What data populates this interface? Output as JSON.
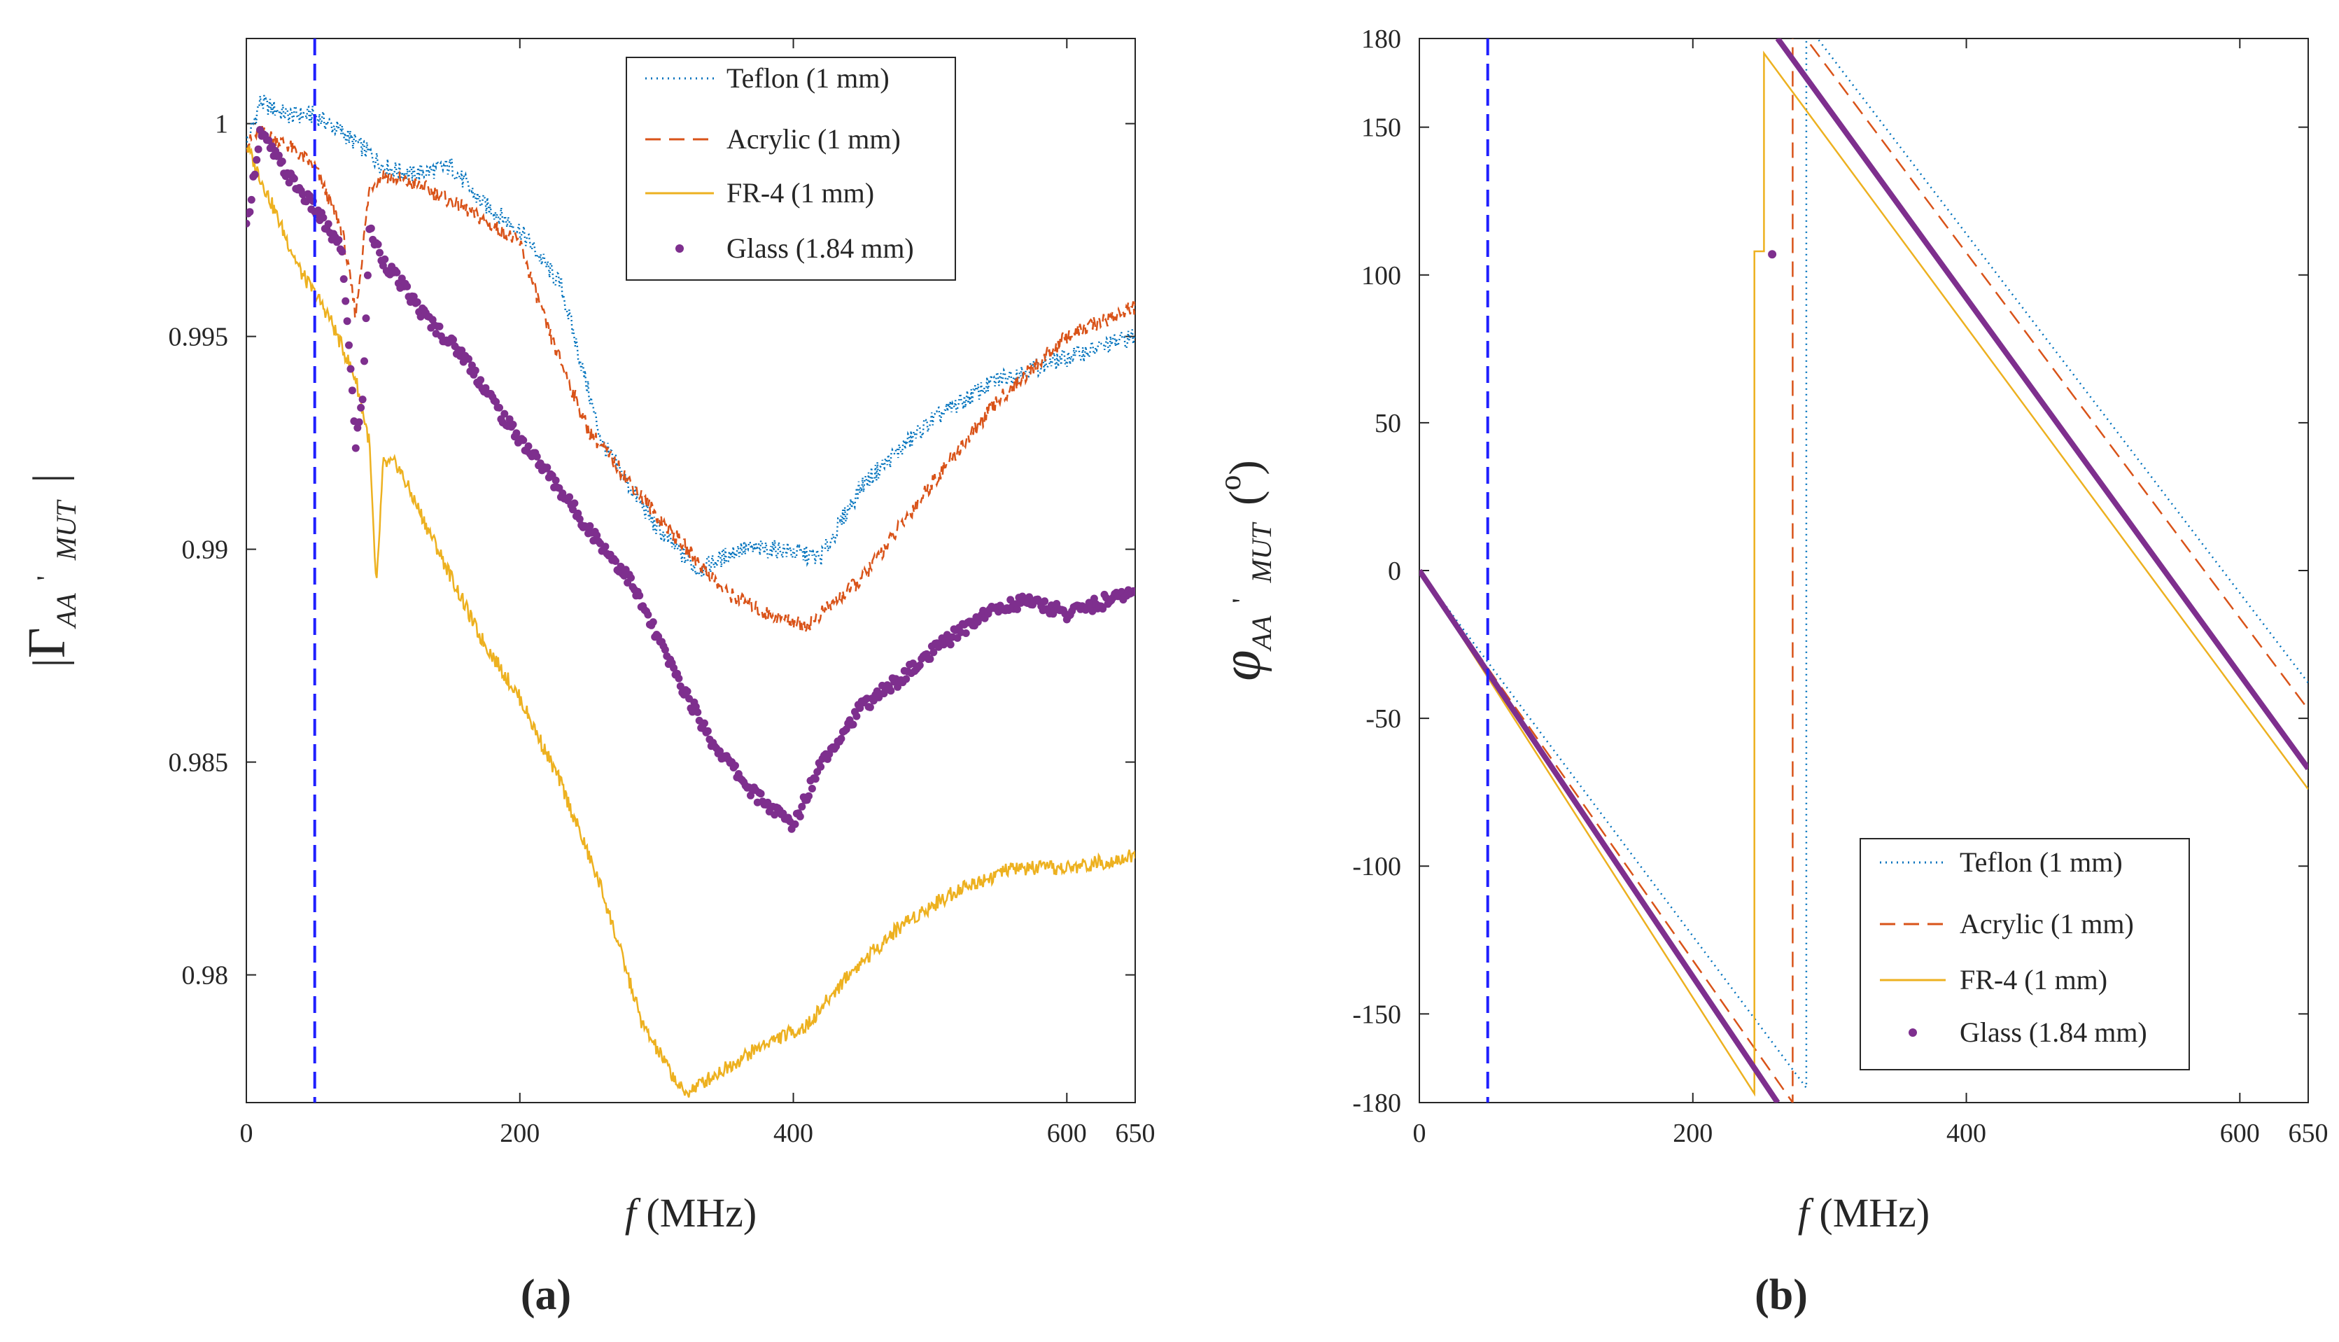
{
  "chart_data": [
    {
      "type": "line",
      "panel_label": "(a)",
      "xlabel": "f (MHz)",
      "xlabel_f": "f",
      "xlabel_unit": "(MHz)",
      "ylabel": "|Γ_AA'_MUT|",
      "ylabel_parts": {
        "bar": "|",
        "symbol": "Γ",
        "sub": "AA",
        "prime": "'",
        "sub2": "MUT"
      },
      "xlim": [
        0,
        650
      ],
      "ylim": [
        0.977,
        1.002
      ],
      "x_ticks": [
        0,
        200,
        400,
        600,
        650
      ],
      "y_ticks": [
        0.98,
        0.985,
        0.99,
        0.995,
        1
      ],
      "y_tick_labels": [
        "0.98",
        "0.985",
        "0.99",
        "0.995",
        "1"
      ],
      "reference_line_x": 50,
      "legend_position": "top-right",
      "series": [
        {
          "name": "Teflon (1 mm)",
          "color": "#0072BD",
          "style": "dotted",
          "x": [
            0,
            10,
            30,
            50,
            70,
            90,
            100,
            120,
            150,
            170,
            200,
            230,
            260,
            300,
            330,
            360,
            390,
            420,
            450,
            500,
            550,
            600,
            650
          ],
          "y": [
            0.9995,
            1.0005,
            1.0002,
            1.0002,
            0.9998,
            0.9993,
            0.999,
            0.9988,
            0.999,
            0.9982,
            0.9975,
            0.9962,
            0.9925,
            0.9905,
            0.9895,
            0.99,
            0.99,
            0.9898,
            0.9915,
            0.993,
            0.994,
            0.9945,
            0.995
          ]
        },
        {
          "name": "Acrylic (1 mm)",
          "color": "#D95319",
          "style": "dashed",
          "x": [
            0,
            10,
            30,
            50,
            70,
            80,
            90,
            100,
            130,
            160,
            200,
            220,
            250,
            300,
            350,
            380,
            410,
            450,
            500,
            550,
            600,
            650
          ],
          "y": [
            0.9995,
            0.9998,
            0.9995,
            0.999,
            0.9975,
            0.9955,
            0.9985,
            0.9988,
            0.9985,
            0.998,
            0.9972,
            0.9952,
            0.9928,
            0.9908,
            0.989,
            0.9885,
            0.9882,
            0.9893,
            0.9915,
            0.9935,
            0.995,
            0.9957
          ]
        },
        {
          "name": "FR-4 (1 mm)",
          "color": "#EDB120",
          "style": "solid",
          "x": [
            0,
            20,
            40,
            60,
            80,
            90,
            95,
            100,
            110,
            140,
            170,
            200,
            230,
            260,
            290,
            320,
            350,
            380,
            410,
            440,
            480,
            520,
            560,
            600,
            650
          ],
          "y": [
            0.9995,
            0.998,
            0.9965,
            0.9955,
            0.994,
            0.9925,
            0.989,
            0.992,
            0.992,
            0.99,
            0.988,
            0.9865,
            0.9845,
            0.982,
            0.9788,
            0.9772,
            0.9778,
            0.9784,
            0.9788,
            0.98,
            0.9812,
            0.982,
            0.9825,
            0.9825,
            0.9828
          ]
        },
        {
          "name": "Glass (1.84 mm)",
          "color": "#7E2F8E",
          "style": "markers",
          "x": [
            0,
            10,
            30,
            50,
            70,
            80,
            85,
            90,
            100,
            130,
            160,
            190,
            220,
            250,
            280,
            310,
            340,
            370,
            400,
            420,
            450,
            480,
            510,
            540,
            570,
            600,
            650
          ],
          "y": [
            0.9975,
            0.9998,
            0.9988,
            0.998,
            0.997,
            0.9925,
            0.9935,
            0.9975,
            0.9968,
            0.9955,
            0.9945,
            0.993,
            0.9918,
            0.9905,
            0.9893,
            0.9873,
            0.9855,
            0.9843,
            0.9835,
            0.985,
            0.9863,
            0.987,
            0.9878,
            0.9885,
            0.9888,
            0.9885,
            0.989
          ]
        }
      ]
    },
    {
      "type": "line",
      "panel_label": "(b)",
      "xlabel": "f (MHz)",
      "xlabel_f": "f",
      "xlabel_unit": "(MHz)",
      "ylabel": "φ_AA'_MUT (°)",
      "ylabel_parts": {
        "symbol": "φ",
        "sub": "AA",
        "prime": "'",
        "sub2": "MUT",
        "lparen": "(",
        "degree": "o",
        "rparen": ")"
      },
      "xlim": [
        0,
        650
      ],
      "ylim": [
        -180,
        180
      ],
      "x_ticks": [
        0,
        200,
        400,
        600,
        650
      ],
      "y_ticks": [
        -180,
        -150,
        -100,
        -50,
        0,
        50,
        100,
        150,
        180
      ],
      "reference_line_x": 50,
      "legend_position": "bottom-right",
      "series": [
        {
          "name": "Teflon (1 mm)",
          "color": "#0072BD",
          "style": "dotted",
          "x": [
            0,
            283,
            283,
            650
          ],
          "y": [
            0,
            -175,
            185,
            -38
          ]
        },
        {
          "name": "Acrylic (1 mm)",
          "color": "#D95319",
          "style": "dashed",
          "x": [
            0,
            273,
            273,
            650
          ],
          "y": [
            0,
            -180,
            186,
            -47
          ]
        },
        {
          "name": "FR-4 (1 mm)",
          "color": "#EDB120",
          "style": "solid",
          "x": [
            0,
            245,
            245,
            252,
            252,
            650
          ],
          "y": [
            0,
            -177,
            108,
            108,
            175,
            -74
          ]
        },
        {
          "name": "Glass (1.84 mm)",
          "color": "#7E2F8E",
          "style": "thick",
          "x": [
            0,
            262,
            262,
            650
          ],
          "y": [
            0,
            -180,
            180,
            -67
          ],
          "markers": [
            {
              "x": 258,
              "y": 107
            }
          ]
        }
      ]
    }
  ]
}
